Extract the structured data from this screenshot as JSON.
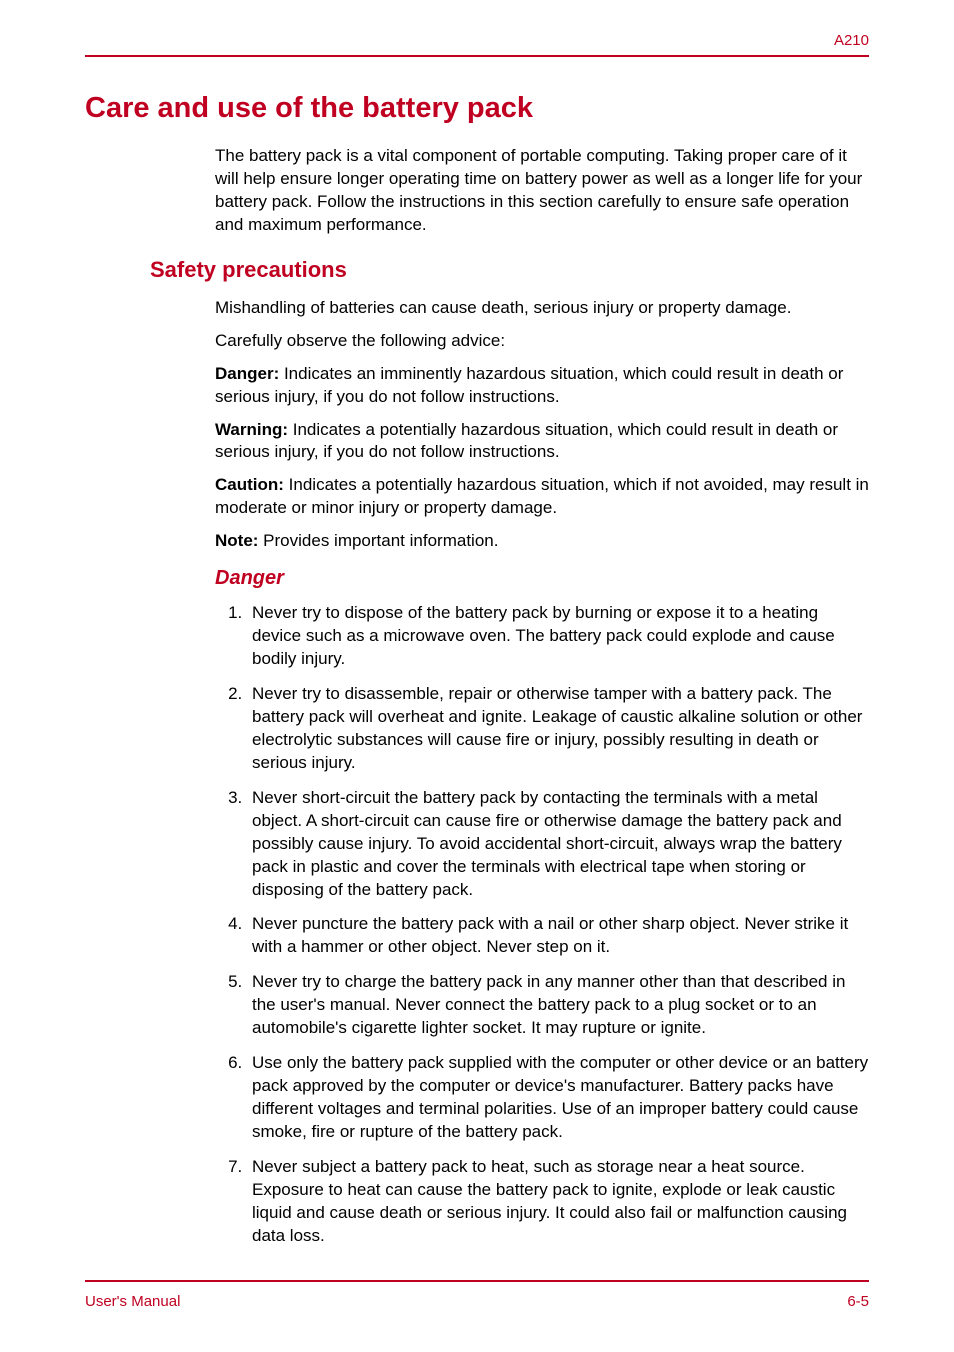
{
  "header": {
    "label": "A210"
  },
  "title": "Care and use of the battery pack",
  "intro": "The battery pack is a vital component of portable computing. Taking proper care of it will help ensure longer operating time on battery power as well as a longer life for your battery pack. Follow the instructions in this section carefully to ensure safe operation and maximum performance.",
  "section": {
    "heading": "Safety precautions",
    "p1": "Mishandling of batteries can cause death, serious injury or property damage.",
    "p2": "Carefully observe the following advice:",
    "defs": {
      "danger_label": "Danger:",
      "danger_text": " Indicates an imminently hazardous situation, which could result in death or serious injury, if you do not follow instructions.",
      "warning_label": "Warning:",
      "warning_text": " Indicates a potentially hazardous situation, which could result in death or serious injury, if you do not follow instructions.",
      "caution_label": "Caution:",
      "caution_text": " Indicates a potentially hazardous situation, which if not avoided, may result in moderate or minor injury or property damage.",
      "note_label": "Note:",
      "note_text": " Provides important information."
    },
    "danger_heading": "Danger",
    "items": [
      "Never try to dispose of the battery pack by burning or expose it to a heating device such as a microwave oven. The battery pack could explode and cause bodily injury.",
      "Never try to disassemble, repair or otherwise tamper with a battery pack. The battery pack will overheat and ignite. Leakage of caustic alkaline solution or other electrolytic substances will cause fire or injury, possibly resulting in death or serious injury.",
      "Never short-circuit the battery pack by contacting the terminals with a metal object. A short-circuit can cause fire or otherwise damage the battery pack and possibly cause injury. To avoid accidental short-circuit, always wrap the battery pack in plastic and cover the terminals with electrical tape when storing or disposing of the battery pack.",
      "Never puncture the battery pack with a nail or other sharp object. Never strike it with a hammer or other object. Never step on it.",
      "Never try to charge the battery pack in any manner other than that described in the user's manual. Never connect the battery pack to a plug socket or to an automobile's cigarette lighter socket. It may rupture or ignite.",
      "Use only the battery pack supplied with the computer or other device or an battery pack approved by the computer or device's manufacturer. Battery packs have different voltages and terminal polarities. Use of an improper battery could cause smoke, fire or rupture of the battery pack.",
      "Never subject a battery pack to heat, such as storage near a heat source. Exposure to heat can cause the battery pack to ignite, explode or leak caustic liquid and cause death or serious injury. It could also fail or malfunction causing data loss."
    ]
  },
  "footer": {
    "left": "User's Manual",
    "right": "6-5"
  },
  "colors": {
    "accent": "#c00020",
    "text": "#000000",
    "background": "#ffffff"
  },
  "typography": {
    "body_size": 17,
    "h1_size": 29,
    "h2_size": 22,
    "h3_size": 20,
    "footer_size": 15
  }
}
